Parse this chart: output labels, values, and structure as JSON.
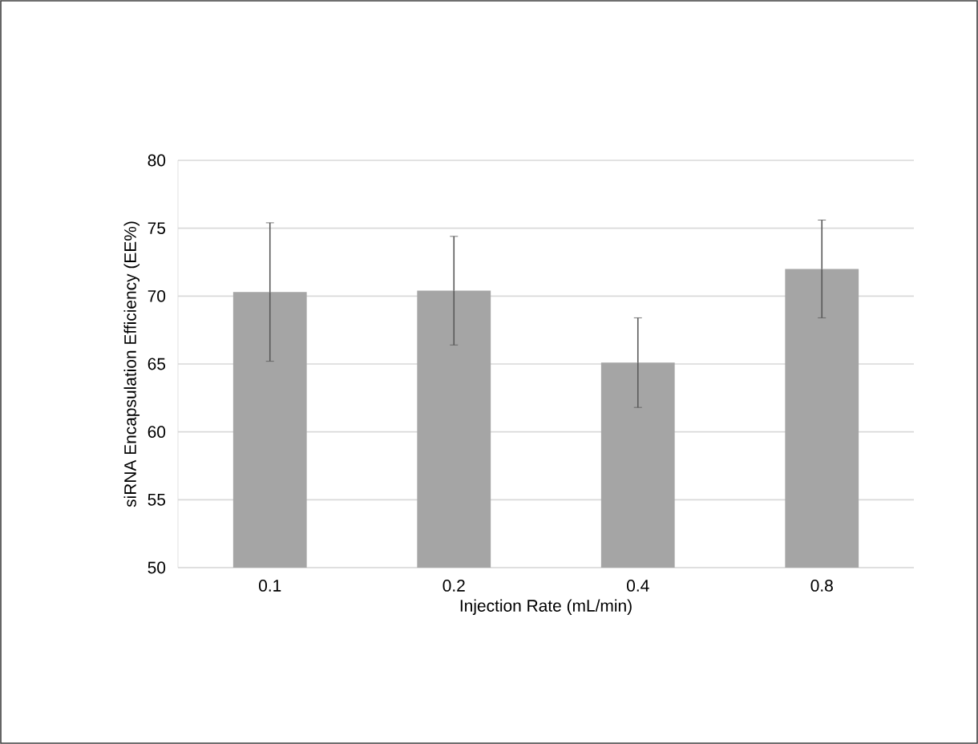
{
  "chart_data": {
    "type": "bar",
    "xlabel": "Injection Rate (mL/min)",
    "ylabel": "siRNA Encapsulation Efficiency (EE%)",
    "categories": [
      "0.1",
      "0.2",
      "0.4",
      "0.8"
    ],
    "values": [
      70.3,
      70.4,
      65.1,
      72.0
    ],
    "errors": [
      5.1,
      4.0,
      3.3,
      3.6
    ],
    "color": "#a5a5a5",
    "ylim": [
      50,
      80
    ],
    "yticks": [
      50,
      55,
      60,
      65,
      70,
      75,
      80
    ],
    "grid": "y"
  }
}
